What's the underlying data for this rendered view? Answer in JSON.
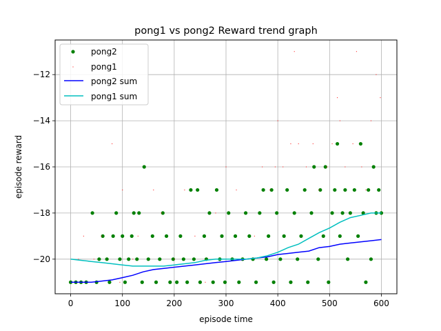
{
  "chart_data": {
    "type": "scatter",
    "title": "pong1 vs pong2 Reward trend graph",
    "xlabel": "episode time",
    "ylabel": "episode reward",
    "xlim": [
      -30,
      630
    ],
    "ylim": [
      -21.5,
      -10.5
    ],
    "xticks": [
      0,
      100,
      200,
      300,
      400,
      500,
      600
    ],
    "yticks": [
      -20,
      -18,
      -16,
      -14,
      -12
    ],
    "xtick_labels": [
      "0",
      "100",
      "200",
      "300",
      "400",
      "500",
      "600"
    ],
    "ytick_labels": [
      "−20",
      "−18",
      "−16",
      "−14",
      "−12"
    ],
    "grid": true,
    "legend_position": "upper-left",
    "colors": {
      "pong2": "#008000",
      "pong1": "#ff0000",
      "pong2_sum": "#0000ff",
      "pong1_sum": "#00bfbf"
    },
    "series": [
      {
        "name": "pong2",
        "kind": "scatter",
        "marker": "large-dot",
        "points": [
          [
            0,
            -21
          ],
          [
            10,
            -21
          ],
          [
            20,
            -21
          ],
          [
            30,
            -21
          ],
          [
            42,
            -18
          ],
          [
            50,
            -21
          ],
          [
            55,
            -20
          ],
          [
            62,
            -19
          ],
          [
            70,
            -20
          ],
          [
            75,
            -21
          ],
          [
            82,
            -19
          ],
          [
            88,
            -18
          ],
          [
            95,
            -20
          ],
          [
            100,
            -19
          ],
          [
            105,
            -21
          ],
          [
            112,
            -20
          ],
          [
            118,
            -19
          ],
          [
            122,
            -18
          ],
          [
            128,
            -20
          ],
          [
            132,
            -18
          ],
          [
            138,
            -21
          ],
          [
            142,
            -16
          ],
          [
            150,
            -20
          ],
          [
            158,
            -19
          ],
          [
            165,
            -21
          ],
          [
            172,
            -20
          ],
          [
            178,
            -18
          ],
          [
            185,
            -19
          ],
          [
            192,
            -21
          ],
          [
            198,
            -20
          ],
          [
            205,
            -21
          ],
          [
            212,
            -19
          ],
          [
            218,
            -20
          ],
          [
            225,
            -21
          ],
          [
            232,
            -17
          ],
          [
            238,
            -20
          ],
          [
            245,
            -17
          ],
          [
            250,
            -21
          ],
          [
            258,
            -19
          ],
          [
            262,
            -20
          ],
          [
            268,
            -18
          ],
          [
            275,
            -21
          ],
          [
            282,
            -17
          ],
          [
            288,
            -20
          ],
          [
            292,
            -19
          ],
          [
            298,
            -21
          ],
          [
            305,
            -18
          ],
          [
            312,
            -20
          ],
          [
            318,
            -19
          ],
          [
            325,
            -21
          ],
          [
            332,
            -20
          ],
          [
            338,
            -18
          ],
          [
            345,
            -19
          ],
          [
            352,
            -20
          ],
          [
            358,
            -21
          ],
          [
            365,
            -18
          ],
          [
            372,
            -17
          ],
          [
            378,
            -20
          ],
          [
            382,
            -19
          ],
          [
            388,
            -17
          ],
          [
            392,
            -21
          ],
          [
            398,
            -18
          ],
          [
            405,
            -20
          ],
          [
            412,
            -19
          ],
          [
            418,
            -17
          ],
          [
            425,
            -21
          ],
          [
            432,
            -18
          ],
          [
            438,
            -20
          ],
          [
            445,
            -19
          ],
          [
            452,
            -17
          ],
          [
            458,
            -21
          ],
          [
            465,
            -18
          ],
          [
            470,
            -16
          ],
          [
            478,
            -20
          ],
          [
            482,
            -17
          ],
          [
            488,
            -19
          ],
          [
            492,
            -16
          ],
          [
            498,
            -21
          ],
          [
            505,
            -18
          ],
          [
            510,
            -17
          ],
          [
            515,
            -15
          ],
          [
            520,
            -19
          ],
          [
            525,
            -18
          ],
          [
            530,
            -17
          ],
          [
            535,
            -20
          ],
          [
            540,
            -18
          ],
          [
            548,
            -17
          ],
          [
            555,
            -19
          ],
          [
            560,
            -15
          ],
          [
            565,
            -18
          ],
          [
            570,
            -21
          ],
          [
            575,
            -17
          ],
          [
            580,
            -20
          ],
          [
            585,
            -16
          ],
          [
            590,
            -18
          ],
          [
            595,
            -17
          ],
          [
            600,
            -18
          ]
        ]
      },
      {
        "name": "pong1",
        "kind": "scatter",
        "marker": "pixel",
        "points": [
          [
            5,
            -21
          ],
          [
            15,
            -20
          ],
          [
            25,
            -19
          ],
          [
            35,
            -21
          ],
          [
            45,
            -20
          ],
          [
            60,
            -19
          ],
          [
            80,
            -15
          ],
          [
            95,
            -21
          ],
          [
            100,
            -17
          ],
          [
            120,
            -20
          ],
          [
            130,
            -19
          ],
          [
            160,
            -17
          ],
          [
            175,
            -18
          ],
          [
            200,
            -20
          ],
          [
            220,
            -17
          ],
          [
            240,
            -19
          ],
          [
            260,
            -21
          ],
          [
            280,
            -18
          ],
          [
            300,
            -16
          ],
          [
            320,
            -17
          ],
          [
            340,
            -20
          ],
          [
            355,
            -19
          ],
          [
            370,
            -16
          ],
          [
            385,
            -17
          ],
          [
            395,
            -16
          ],
          [
            400,
            -14
          ],
          [
            410,
            -16
          ],
          [
            425,
            -15
          ],
          [
            432,
            -11
          ],
          [
            440,
            -15
          ],
          [
            455,
            -16
          ],
          [
            468,
            -15
          ],
          [
            480,
            -17
          ],
          [
            495,
            -16
          ],
          [
            505,
            -15
          ],
          [
            515,
            -13
          ],
          [
            520,
            -14
          ],
          [
            530,
            -16
          ],
          [
            545,
            -15
          ],
          [
            552,
            -11
          ],
          [
            562,
            -16
          ],
          [
            570,
            -17
          ],
          [
            580,
            -14
          ],
          [
            590,
            -12
          ],
          [
            598,
            -13
          ]
        ]
      },
      {
        "name": "pong2 sum",
        "kind": "line",
        "points": [
          [
            0,
            -21
          ],
          [
            40,
            -21
          ],
          [
            60,
            -20.95
          ],
          [
            80,
            -20.9
          ],
          [
            100,
            -20.8
          ],
          [
            120,
            -20.7
          ],
          [
            140,
            -20.55
          ],
          [
            160,
            -20.45
          ],
          [
            180,
            -20.4
          ],
          [
            200,
            -20.35
          ],
          [
            220,
            -20.3
          ],
          [
            240,
            -20.25
          ],
          [
            260,
            -20.2
          ],
          [
            280,
            -20.15
          ],
          [
            300,
            -20.1
          ],
          [
            320,
            -20.05
          ],
          [
            340,
            -20.0
          ],
          [
            360,
            -19.95
          ],
          [
            380,
            -19.9
          ],
          [
            400,
            -19.8
          ],
          [
            420,
            -19.75
          ],
          [
            440,
            -19.7
          ],
          [
            460,
            -19.65
          ],
          [
            480,
            -19.5
          ],
          [
            500,
            -19.45
          ],
          [
            520,
            -19.35
          ],
          [
            540,
            -19.3
          ],
          [
            560,
            -19.25
          ],
          [
            580,
            -19.2
          ],
          [
            600,
            -19.15
          ]
        ]
      },
      {
        "name": "pong1 sum",
        "kind": "line",
        "points": [
          [
            0,
            -20
          ],
          [
            20,
            -20.05
          ],
          [
            40,
            -20.1
          ],
          [
            60,
            -20.15
          ],
          [
            80,
            -20.2
          ],
          [
            100,
            -20.25
          ],
          [
            120,
            -20.3
          ],
          [
            140,
            -20.3
          ],
          [
            160,
            -20.3
          ],
          [
            180,
            -20.3
          ],
          [
            200,
            -20.25
          ],
          [
            220,
            -20.2
          ],
          [
            240,
            -20.15
          ],
          [
            260,
            -20.05
          ],
          [
            280,
            -20.0
          ],
          [
            300,
            -20.0
          ],
          [
            320,
            -20.0
          ],
          [
            340,
            -20.0
          ],
          [
            360,
            -19.95
          ],
          [
            380,
            -19.85
          ],
          [
            400,
            -19.7
          ],
          [
            420,
            -19.5
          ],
          [
            440,
            -19.35
          ],
          [
            460,
            -19.1
          ],
          [
            480,
            -18.85
          ],
          [
            500,
            -18.65
          ],
          [
            520,
            -18.4
          ],
          [
            540,
            -18.2
          ],
          [
            560,
            -18.1
          ],
          [
            580,
            -18.0
          ],
          [
            600,
            -18.0
          ]
        ]
      }
    ]
  }
}
